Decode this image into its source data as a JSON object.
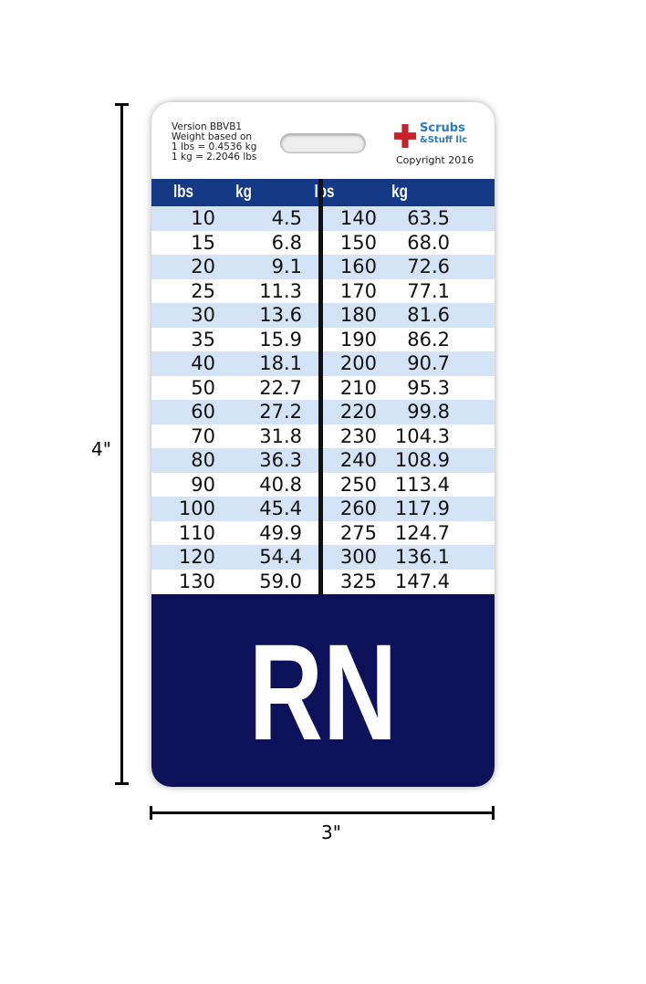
{
  "dimensions": {
    "height": "4\"",
    "width": "3\""
  },
  "card": {
    "info": [
      "Version BBVB1",
      "Weight based on",
      "1 lbs = 0.4536 kg",
      "1 kg = 2.2046 lbs"
    ],
    "brand": {
      "name_line1": "Scrubs",
      "name_line2": "&Stuff llc",
      "copyright": "Copyright 2016"
    },
    "headers": [
      "lbs",
      "kg",
      "lbs",
      "kg"
    ],
    "rows": [
      [
        "10",
        "4.5",
        "140",
        "63.5"
      ],
      [
        "15",
        "6.8",
        "150",
        "68.0"
      ],
      [
        "20",
        "9.1",
        "160",
        "72.6"
      ],
      [
        "25",
        "11.3",
        "170",
        "77.1"
      ],
      [
        "30",
        "13.6",
        "180",
        "81.6"
      ],
      [
        "35",
        "15.9",
        "190",
        "86.2"
      ],
      [
        "40",
        "18.1",
        "200",
        "90.7"
      ],
      [
        "50",
        "22.7",
        "210",
        "95.3"
      ],
      [
        "60",
        "27.2",
        "220",
        "99.8"
      ],
      [
        "70",
        "31.8",
        "230",
        "104.3"
      ],
      [
        "80",
        "36.3",
        "240",
        "108.9"
      ],
      [
        "90",
        "40.8",
        "250",
        "113.4"
      ],
      [
        "100",
        "45.4",
        "260",
        "117.9"
      ],
      [
        "110",
        "49.9",
        "275",
        "124.7"
      ],
      [
        "120",
        "54.4",
        "300",
        "136.1"
      ],
      [
        "130",
        "59.0",
        "325",
        "147.4"
      ]
    ],
    "title": "RN",
    "colors": {
      "header": "#153a85",
      "row_alt": "#d5e3f7",
      "bottom": "#0c1159"
    }
  }
}
